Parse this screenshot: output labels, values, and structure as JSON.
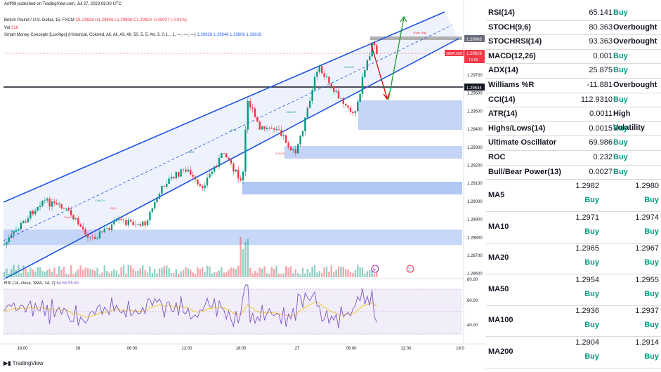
{
  "header": {
    "published": "Ariff99 published on TradingView.com, Jul 27, 2023 08:30 UTC",
    "symbol": "British Pound / U.S. Dollar, 15, FXCM",
    "ohlc": "O1.29826 H1.29846 L1.29806 C1.29819 -0.00007 (-0.01%)",
    "vol_label": "Vol",
    "vol_value": "316",
    "smc": "Smart Money Concepts [LuxAlgo] (Historical, Colored, All, All, All, All, 50, 5, 5, Atr, 3, 0.1, , 1, —, —, —)",
    "smc_values": "1.29826  1.29846  1.29806  1.29819",
    "rsi_label": "RSI (14, close, SMA, 14, 2)",
    "rsi_values": "64.63  55.90",
    "footer": "TradingView"
  },
  "price_axis": {
    "ticks": [
      "1.29700",
      "1.29600",
      "1.29500",
      "1.29400",
      "1.29300",
      "1.29200",
      "1.29100",
      "1.29000",
      "1.28900",
      "1.28800",
      "1.28700",
      "1.28600"
    ],
    "flag_top": "1.29908",
    "flag_level": "1.29634",
    "flag_symbol": "GBPUSD",
    "flag_price": "1.29819",
    "flag_timer": "14:05",
    "weak_high": "Weak High"
  },
  "rsi_axis": {
    "ticks": [
      "80.00",
      "60.00",
      "40.00"
    ]
  },
  "time_axis": {
    "ticks": [
      "18:00",
      "26",
      "06:00",
      "12:00",
      "18:00",
      "27",
      "06:00",
      "12:00",
      "18:0"
    ]
  },
  "chart_labels": {
    "bos": "BOS",
    "choch": "CHoCH",
    "eqh": "EQH"
  },
  "indicators": [
    {
      "name": "RSI(14)",
      "value": "65.141",
      "signal": "Buy"
    },
    {
      "name": "STOCH(9,6)",
      "value": "80.363",
      "signal": "Overbought"
    },
    {
      "name": "STOCHRSI(14)",
      "value": "93.363",
      "signal": "Overbought"
    },
    {
      "name": "MACD(12,26)",
      "value": "0.001",
      "signal": "Buy"
    },
    {
      "name": "ADX(14)",
      "value": "25.875",
      "signal": "Buy"
    },
    {
      "name": "Williams %R",
      "value": "-11.881",
      "signal": "Overbought"
    },
    {
      "name": "CCI(14)",
      "value": "112.9310",
      "signal": "Buy"
    },
    {
      "name": "ATR(14)",
      "value": "0.0011",
      "signal": "High Volatility"
    },
    {
      "name": "Highs/Lows(14)",
      "value": "0.0015",
      "signal": "Buy"
    },
    {
      "name": "Ultimate Oscillator",
      "value": "69.986",
      "signal": "Buy"
    },
    {
      "name": "ROC",
      "value": "0.232",
      "signal": "Buy"
    },
    {
      "name": "Bull/Bear Power(13)",
      "value": "0.0027",
      "signal": "Buy"
    }
  ],
  "moving_averages": [
    {
      "name": "MA5",
      "simple": "1.2982",
      "exponential": "1.2980",
      "simple_signal": "Buy",
      "exponential_signal": "Buy"
    },
    {
      "name": "MA10",
      "simple": "1.2971",
      "exponential": "1.2974",
      "simple_signal": "Buy",
      "exponential_signal": "Buy"
    },
    {
      "name": "MA20",
      "simple": "1.2965",
      "exponential": "1.2967",
      "simple_signal": "Buy",
      "exponential_signal": "Buy"
    },
    {
      "name": "MA50",
      "simple": "1.2954",
      "exponential": "1.2955",
      "simple_signal": "Buy",
      "exponential_signal": "Buy"
    },
    {
      "name": "MA100",
      "simple": "1.2936",
      "exponential": "1.2937",
      "simple_signal": "Buy",
      "exponential_signal": "Buy"
    },
    {
      "name": "MA200",
      "simple": "1.2904",
      "exponential": "1.2914",
      "simple_signal": "Buy",
      "exponential_signal": "Buy"
    }
  ],
  "colors": {
    "up": "#089981",
    "down": "#f23645",
    "channel": "#1e53e5",
    "zone": "#b9cdf5",
    "rsi_line": "#7e57c2",
    "rsi_ma": "#f5c518"
  }
}
